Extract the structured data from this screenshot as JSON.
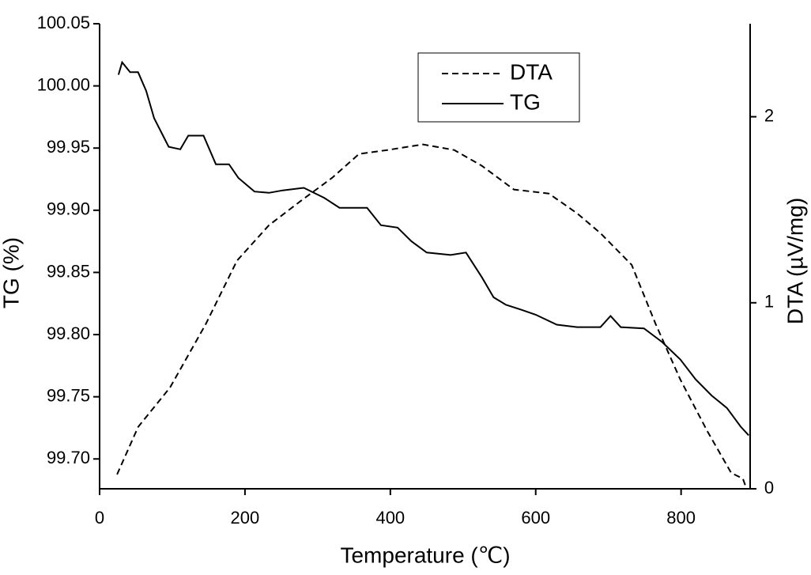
{
  "chart_data": {
    "type": "line",
    "x_label": "Temperature (℃)",
    "y_label": "TG (%)",
    "y2_label": "DTA (µV/mg)",
    "xlim": [
      0,
      895
    ],
    "xticks": [
      0,
      200,
      400,
      600,
      800
    ],
    "ylim": [
      99.676,
      100.05
    ],
    "yticks": [
      {
        "value": 99.7,
        "label": "99.70"
      },
      99.75,
      {
        "value": 99.8,
        "label": "99.80"
      },
      99.85,
      {
        "value": 99.9,
        "label": "99.90"
      },
      99.95,
      {
        "value": 100,
        "label": "100.00"
      },
      100.05
    ],
    "y2lim": [
      0,
      2.5
    ],
    "y2ticks": [
      0,
      1,
      2
    ],
    "legend": "top-center",
    "series": [
      {
        "name": "DTA",
        "color": "#000000",
        "dash": "dashed",
        "axis": "y2",
        "x": [
          24,
          53,
          97,
          146,
          189,
          233,
          276,
          320,
          357,
          396,
          445,
          488,
          526,
          570,
          618,
          657,
          689,
          732,
          765,
          799,
          836,
          869,
          885,
          890
        ],
        "values": [
          0.077,
          0.332,
          0.545,
          0.885,
          1.226,
          1.417,
          1.545,
          1.672,
          1.8,
          1.821,
          1.851,
          1.821,
          1.736,
          1.609,
          1.587,
          1.481,
          1.374,
          1.204,
          0.885,
          0.587,
          0.311,
          0.085,
          0.055,
          0
        ]
      },
      {
        "name": "TG",
        "color": "#000000",
        "dash": "solid",
        "x": [
          26,
          31,
          42,
          53,
          64,
          75,
          95,
          111,
          122,
          143,
          160,
          178,
          191,
          213,
          233,
          252,
          281,
          309,
          330,
          368,
          387,
          410,
          429,
          450,
          483,
          504,
          526,
          542,
          559,
          580,
          600,
          629,
          657,
          689,
          703,
          717,
          749,
          774,
          799,
          820,
          842,
          863,
          882,
          893
        ],
        "values": [
          100.009,
          100.019,
          100.011,
          100.011,
          99.996,
          99.974,
          99.951,
          99.949,
          99.96,
          99.96,
          99.937,
          99.937,
          99.926,
          99.915,
          99.914,
          99.916,
          99.918,
          99.91,
          99.902,
          99.902,
          99.888,
          99.886,
          99.875,
          99.866,
          99.864,
          99.866,
          99.846,
          99.83,
          99.824,
          99.82,
          99.816,
          99.808,
          99.806,
          99.806,
          99.815,
          99.806,
          99.805,
          99.794,
          99.78,
          99.764,
          99.751,
          99.741,
          99.726,
          99.719
        ]
      }
    ]
  }
}
